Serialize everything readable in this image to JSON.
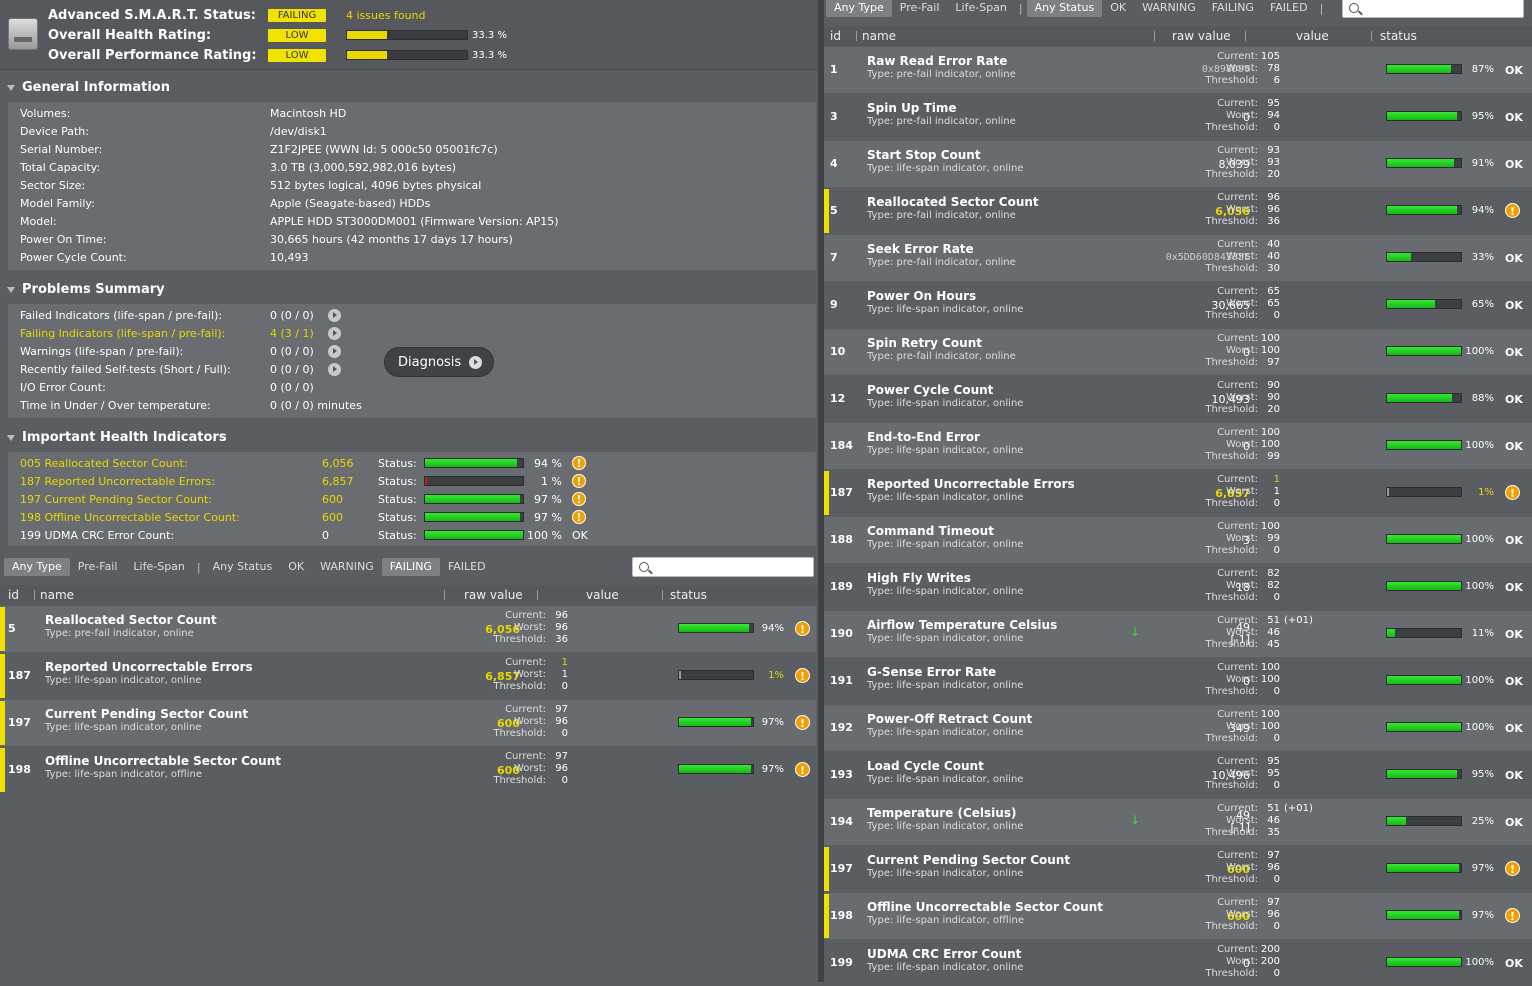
{
  "status": {
    "smart_label": "Advanced S.M.A.R.T. Status:",
    "smart_badge": "FAILING",
    "smart_issues": "4 issues found",
    "health_label": "Overall Health Rating:",
    "health_badge": "LOW",
    "health_pct": "33.3 %",
    "health_value": 0.333,
    "perf_label": "Overall Performance Rating:",
    "perf_badge": "LOW",
    "perf_pct": "33.3 %",
    "perf_value": 0.333
  },
  "general": {
    "title": "General Information",
    "rows": [
      {
        "k": "Volumes:",
        "v": "Macintosh HD"
      },
      {
        "k": "Device Path:",
        "v": "/dev/disk1"
      },
      {
        "k": "Serial Number:",
        "v": "Z1F2JPEE (WWN Id: 5 000c50 05001fc7c)"
      },
      {
        "k": "Total Capacity:",
        "v": "3.0 TB (3,000,592,982,016 bytes)"
      },
      {
        "k": "Sector Size:",
        "v": "512 bytes logical, 4096 bytes physical"
      },
      {
        "k": "Model Family:",
        "v": "Apple (Seagate-based) HDDs"
      },
      {
        "k": "Model:",
        "v": "APPLE HDD ST3000DM001  (Firmware Version: AP15)"
      },
      {
        "k": "Power On Time:",
        "v": "30,665 hours (42 months 17 days 17 hours)"
      },
      {
        "k": "Power Cycle Count:",
        "v": "10,493"
      }
    ]
  },
  "problems": {
    "title": "Problems Summary",
    "rows": [
      {
        "k": "Failed Indicators (life-span / pre-fail):",
        "v": "0 (0 / 0)",
        "btn": true,
        "warn": false
      },
      {
        "k": "Failing Indicators (life-span / pre-fail):",
        "v": "4 (3 / 1)",
        "btn": true,
        "warn": true
      },
      {
        "k": "Warnings (life-span / pre-fail):",
        "v": "0 (0 / 0)",
        "btn": true,
        "warn": false
      },
      {
        "k": "Recently failed Self-tests (Short / Full):",
        "v": "0 (0 / 0)",
        "btn": true,
        "warn": false
      },
      {
        "k": "I/O Error Count:",
        "v": "0 (0 / 0)",
        "btn": false,
        "warn": false
      },
      {
        "k": "Time in Under / Over temperature:",
        "v": "0 (0 / 0)  minutes",
        "btn": false,
        "warn": false
      }
    ],
    "diagnosis_label": "Diagnosis"
  },
  "health": {
    "title": "Important Health Indicators",
    "status_label": "Status:",
    "rows": [
      {
        "name": "005  Reallocated Sector Count:",
        "raw": "6,056",
        "pct": "94 %",
        "value": 0.94,
        "warn": true,
        "end": "!"
      },
      {
        "name": "187  Reported Uncorrectable Errors:",
        "raw": "6,857",
        "pct": "1 %",
        "value": 0.01,
        "warn": true,
        "end": "!"
      },
      {
        "name": "197  Current Pending Sector Count:",
        "raw": "600",
        "pct": "97 %",
        "value": 0.97,
        "warn": true,
        "end": "!"
      },
      {
        "name": "198  Offline Uncorrectable Sector Count:",
        "raw": "600",
        "pct": "97 %",
        "value": 0.97,
        "warn": true,
        "end": "!"
      },
      {
        "name": "199  UDMA CRC Error Count:",
        "raw": "0",
        "pct": "100 %",
        "value": 1.0,
        "warn": false,
        "end": "OK"
      }
    ]
  },
  "left_filters": [
    "Any Type",
    "Pre-Fail",
    "Life-Span",
    "|",
    "Any Status",
    "OK",
    "WARNING",
    "FAILING",
    "FAILED"
  ],
  "left_filter_selected": [
    "Any Type",
    "FAILING"
  ],
  "right_filters": [
    "Any Type",
    "Pre-Fail",
    "Life-Span",
    "|",
    "Any Status",
    "OK",
    "WARNING",
    "FAILING",
    "FAILED",
    "|"
  ],
  "right_filter_selected": [
    "Any Type",
    "Any Status"
  ],
  "columns": {
    "id": "id",
    "name": "name",
    "raw": "raw value",
    "value": "value",
    "status": "status"
  },
  "value_labels": {
    "current": "Current:",
    "worst": "Worst:",
    "threshold": "Threshold:"
  },
  "left_rows": [
    {
      "id": "5",
      "name": "Reallocated Sector Count",
      "type": "Type: pre-fail indicator, online",
      "raw": "6,056",
      "cur": "96",
      "worst": "96",
      "thr": "36",
      "pct": "94%",
      "value": 0.94,
      "warn": true
    },
    {
      "id": "187",
      "name": "Reported Uncorrectable Errors",
      "type": "Type: life-span indicator, online",
      "raw": "6,857",
      "cur": "1",
      "worst": "1",
      "thr": "0",
      "pct": "1%",
      "value": 0.01,
      "warn": true,
      "curwarn": true
    },
    {
      "id": "197",
      "name": "Current Pending Sector Count",
      "type": "Type: life-span indicator, online",
      "raw": "600",
      "cur": "97",
      "worst": "96",
      "thr": "0",
      "pct": "97%",
      "value": 0.97,
      "warn": true
    },
    {
      "id": "198",
      "name": "Offline Uncorrectable Sector Count",
      "type": "Type: life-span indicator, offline",
      "raw": "600",
      "cur": "97",
      "worst": "96",
      "thr": "0",
      "pct": "97%",
      "value": 0.97,
      "warn": true
    }
  ],
  "right_rows": [
    {
      "id": "1",
      "name": "Raw Read Error Rate",
      "type": "Type: pre-fail indicator, online",
      "raw": "0x898D90",
      "mono": true,
      "cur": "105",
      "worst": "78",
      "thr": "6",
      "pct": "87%",
      "value": 0.87,
      "warn": false
    },
    {
      "id": "3",
      "name": "Spin Up Time",
      "type": "Type: pre-fail indicator, online",
      "raw": "0",
      "cur": "95",
      "worst": "94",
      "thr": "0",
      "pct": "95%",
      "value": 0.95,
      "warn": false
    },
    {
      "id": "4",
      "name": "Start Stop Count",
      "type": "Type: life-span indicator, online",
      "raw": "8,039",
      "cur": "93",
      "worst": "93",
      "thr": "20",
      "pct": "91%",
      "value": 0.91,
      "warn": false
    },
    {
      "id": "5",
      "name": "Reallocated Sector Count",
      "type": "Type: pre-fail indicator, online",
      "raw": "6,056",
      "cur": "96",
      "worst": "96",
      "thr": "36",
      "pct": "94%",
      "value": 0.94,
      "warn": true
    },
    {
      "id": "7",
      "name": "Seek Error Rate",
      "type": "Type: pre-fail indicator, online",
      "raw": "0x5DD60D84335E",
      "mono": true,
      "cur": "40",
      "worst": "40",
      "thr": "30",
      "pct": "33%",
      "value": 0.33,
      "warn": false
    },
    {
      "id": "9",
      "name": "Power On Hours",
      "type": "Type: life-span indicator, online",
      "raw": "30,665",
      "cur": "65",
      "worst": "65",
      "thr": "0",
      "pct": "65%",
      "value": 0.65,
      "warn": false
    },
    {
      "id": "10",
      "name": "Spin Retry Count",
      "type": "Type: pre-fail indicator, online",
      "raw": "0",
      "cur": "100",
      "worst": "100",
      "thr": "97",
      "pct": "100%",
      "value": 1.0,
      "warn": false
    },
    {
      "id": "12",
      "name": "Power Cycle Count",
      "type": "Type: life-span indicator, online",
      "raw": "10,493",
      "cur": "90",
      "worst": "90",
      "thr": "20",
      "pct": "88%",
      "value": 0.88,
      "warn": false
    },
    {
      "id": "184",
      "name": "End-to-End Error",
      "type": "Type: life-span indicator, online",
      "raw": "0",
      "cur": "100",
      "worst": "100",
      "thr": "99",
      "pct": "100%",
      "value": 1.0,
      "warn": false
    },
    {
      "id": "187",
      "name": "Reported Uncorrectable Errors",
      "type": "Type: life-span indicator, online",
      "raw": "6,857",
      "cur": "1",
      "worst": "1",
      "thr": "0",
      "pct": "1%",
      "value": 0.01,
      "warn": true,
      "curwarn": true
    },
    {
      "id": "188",
      "name": "Command Timeout",
      "type": "Type: life-span indicator, online",
      "raw": "3",
      "cur": "100",
      "worst": "99",
      "thr": "0",
      "pct": "100%",
      "value": 1.0,
      "warn": false
    },
    {
      "id": "189",
      "name": "High Fly Writes",
      "type": "Type: life-span indicator, online",
      "raw": "18",
      "cur": "82",
      "worst": "82",
      "thr": "0",
      "pct": "100%",
      "value": 1.0,
      "warn": false
    },
    {
      "id": "190",
      "name": "Airflow Temperature Celsius",
      "type": "Type: life-span indicator, online",
      "raw": "49",
      "raw2": "[-1]",
      "arrow": "↓",
      "cur": "51",
      "curx": "(+01)",
      "worst": "46",
      "thr": "45",
      "pct": "11%",
      "value": 0.11,
      "warn": false
    },
    {
      "id": "191",
      "name": "G-Sense Error Rate",
      "type": "Type: life-span indicator, online",
      "raw": "0",
      "cur": "100",
      "worst": "100",
      "thr": "0",
      "pct": "100%",
      "value": 1.0,
      "warn": false
    },
    {
      "id": "192",
      "name": "Power-Off Retract Count",
      "type": "Type: life-span indicator, online",
      "raw": "349",
      "cur": "100",
      "worst": "100",
      "thr": "0",
      "pct": "100%",
      "value": 1.0,
      "warn": false
    },
    {
      "id": "193",
      "name": "Load Cycle Count",
      "type": "Type: life-span indicator, online",
      "raw": "10,496",
      "cur": "95",
      "worst": "95",
      "thr": "0",
      "pct": "95%",
      "value": 0.95,
      "warn": false
    },
    {
      "id": "194",
      "name": "Temperature (Celsius)",
      "type": "Type: life-span indicator, online",
      "raw": "49",
      "raw2": "[-1]",
      "arrow": "↓",
      "cur": "51",
      "curx": "(+01)",
      "worst": "46",
      "thr": "35",
      "pct": "25%",
      "value": 0.25,
      "warn": false
    },
    {
      "id": "197",
      "name": "Current Pending Sector Count",
      "type": "Type: life-span indicator, online",
      "raw": "600",
      "cur": "97",
      "worst": "96",
      "thr": "0",
      "pct": "97%",
      "value": 0.97,
      "warn": true
    },
    {
      "id": "198",
      "name": "Offline Uncorrectable Sector Count",
      "type": "Type: life-span indicator, offline",
      "raw": "600",
      "cur": "97",
      "worst": "96",
      "thr": "0",
      "pct": "97%",
      "value": 0.97,
      "warn": true
    },
    {
      "id": "199",
      "name": "UDMA CRC Error Count",
      "type": "Type: life-span indicator, online",
      "raw": "0",
      "cur": "200",
      "worst": "200",
      "thr": "0",
      "pct": "100%",
      "value": 1.0,
      "warn": false
    }
  ],
  "ok_label": "OK",
  "warn_glyph": "!"
}
